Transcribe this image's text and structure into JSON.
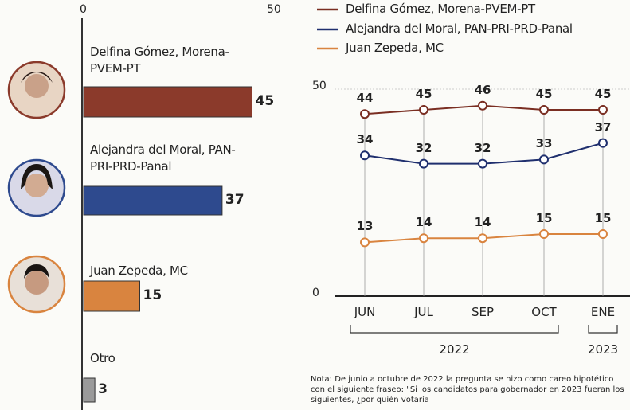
{
  "chart_data": [
    {
      "type": "hbar",
      "categories": [
        "Delfina Gómez, Morena-PVEM-PT",
        "Alejandra del Moral, PAN-PRI-PRD-Panal",
        "Juan Zepeda, MC",
        "Otro"
      ],
      "values": [
        45,
        37,
        15,
        3
      ],
      "colors": [
        "#8b3a2b",
        "#2e4a8e",
        "#d9843f",
        "#9a9a9a"
      ],
      "xlim": [
        0,
        50
      ],
      "xticks": [
        0,
        50
      ]
    },
    {
      "type": "line",
      "categories": [
        "JUN",
        "JUL",
        "SEP",
        "OCT",
        "ENE"
      ],
      "groups": [
        {
          "label": "2022",
          "from": "JUN",
          "to": "OCT"
        },
        {
          "label": "2023",
          "from": "ENE",
          "to": "ENE"
        }
      ],
      "series": [
        {
          "name": "Delfina Gómez, Morena-PVEM-PT",
          "color": "#7a2e22",
          "values": [
            44,
            45,
            46,
            45,
            45
          ]
        },
        {
          "name": "Alejandra del Moral, PAN-PRI-PRD-Panal",
          "color": "#1f2f6e",
          "values": [
            34,
            32,
            32,
            33,
            37
          ]
        },
        {
          "name": "Juan Zepeda, MC",
          "color": "#d9843f",
          "values": [
            13,
            14,
            14,
            15,
            15
          ]
        }
      ],
      "ylim": [
        0,
        50
      ],
      "yticks": [
        0,
        50
      ]
    }
  ],
  "note": "Nota: De junio a octubre de 2022 la pregunta se hizo como careo hipotético con el siguiente fraseo: \"Si los candidatos para gobernador en 2023 fueran los siguientes, ¿por quién votaría"
}
